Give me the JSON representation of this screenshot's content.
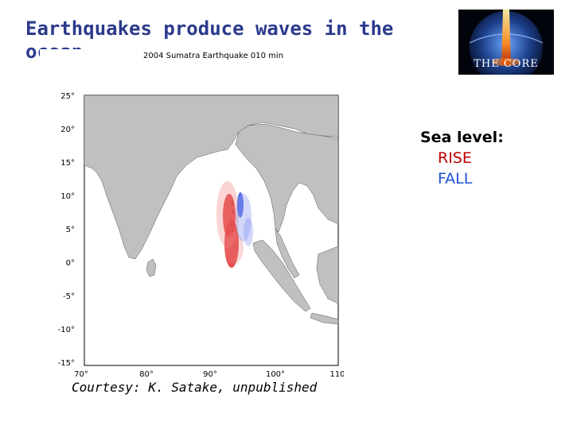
{
  "slide": {
    "title": "Earthquakes produce waves in the ocean",
    "credit": "Courtesy: K. Satake, unpublished"
  },
  "logo": {
    "text": "THE CORE",
    "icon": "movie-poster-earth-logo"
  },
  "map": {
    "caption": "2004 Sumatra Earthquake 010 min",
    "y_ticks": [
      "25°",
      "20°",
      "15°",
      "10°",
      "5°",
      "0°",
      "-5°",
      "-10°",
      "-15°"
    ],
    "x_ticks": [
      "70°",
      "80°",
      "90°",
      "100°",
      "110"
    ],
    "land_color": "#c0c0c0",
    "rise_color": "#e03030",
    "fall_color": "#3050e0"
  },
  "legend": {
    "heading": "Sea level:",
    "rise": "RISE",
    "fall": "FALL",
    "rise_color": "#c00000",
    "fall_color": "#1f4fd6"
  }
}
